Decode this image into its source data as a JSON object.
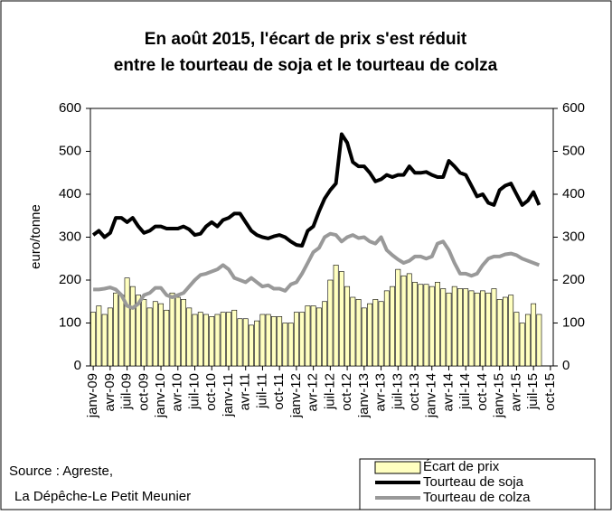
{
  "chart_data": {
    "type": "bar-line",
    "title": [
      "En août 2015, l'écart de prix s'est réduit",
      "entre le tourteau de soja et le tourteau de colza"
    ],
    "ylabel": "euro/tonne",
    "source": [
      "Source : Agreste,",
      "La Dépêche-Le Petit Meunier"
    ],
    "categories": [
      "janv-09",
      null,
      null,
      "avr-09",
      null,
      null,
      "juil-09",
      null,
      null,
      "oct-09",
      null,
      null,
      "janv-10",
      null,
      null,
      "avr-10",
      null,
      null,
      "juil-10",
      null,
      null,
      "oct-10",
      null,
      null,
      "janv-11",
      null,
      null,
      "avr-11",
      null,
      null,
      "juil-11",
      null,
      null,
      "oct-11",
      null,
      null,
      "janv-12",
      null,
      null,
      "avr-12",
      null,
      null,
      "juil-12",
      null,
      null,
      "oct-12",
      null,
      null,
      "janv-13",
      null,
      null,
      "avr-13",
      null,
      null,
      "juil-13",
      null,
      null,
      "oct-13",
      null,
      null,
      "janv-14",
      null,
      null,
      "avr-14",
      null,
      null,
      "juil-14",
      null,
      null,
      "oct-14",
      null,
      null,
      "janv-15",
      null,
      null,
      "avr-15",
      null,
      null,
      "juil-15",
      null,
      null,
      "oct-15"
    ],
    "series": [
      {
        "name": "Écart de prix",
        "kind": "bar",
        "color": "#ffffc0",
        "values": [
          125,
          140,
          120,
          135,
          170,
          165,
          205,
          185,
          165,
          155,
          135,
          150,
          145,
          130,
          170,
          160,
          155,
          135,
          120,
          125,
          120,
          115,
          120,
          125,
          125,
          130,
          110,
          110,
          95,
          105,
          120,
          120,
          115,
          115,
          100,
          100,
          125,
          125,
          140,
          140,
          135,
          150,
          200,
          235,
          220,
          185,
          160,
          155,
          135,
          145,
          155,
          150,
          175,
          185,
          225,
          210,
          215,
          195,
          190,
          190,
          185,
          195,
          180,
          170,
          185,
          180,
          180,
          175,
          170,
          175,
          170,
          180,
          155,
          160,
          165,
          125,
          100,
          120,
          145,
          120,
          null,
          null
        ]
      },
      {
        "name": "Tourteau de soja",
        "kind": "line",
        "color": "#000000",
        "values": [
          305,
          315,
          300,
          310,
          345,
          345,
          335,
          345,
          325,
          310,
          315,
          325,
          325,
          320,
          320,
          320,
          325,
          318,
          305,
          308,
          325,
          335,
          325,
          340,
          345,
          355,
          355,
          335,
          315,
          305,
          300,
          297,
          302,
          305,
          300,
          290,
          282,
          280,
          315,
          325,
          360,
          390,
          410,
          425,
          540,
          520,
          475,
          465,
          465,
          450,
          430,
          435,
          445,
          440,
          445,
          445,
          465,
          450,
          450,
          452,
          445,
          440,
          440,
          478,
          465,
          450,
          445,
          420,
          395,
          400,
          380,
          375,
          410,
          420,
          425,
          400,
          375,
          385,
          405,
          375,
          null,
          null
        ]
      },
      {
        "name": "Tourteau de colza",
        "kind": "line",
        "color": "#999999",
        "values": [
          178,
          178,
          180,
          183,
          178,
          165,
          140,
          135,
          145,
          165,
          170,
          182,
          182,
          165,
          160,
          165,
          170,
          185,
          200,
          212,
          215,
          220,
          225,
          235,
          225,
          205,
          200,
          195,
          205,
          195,
          185,
          188,
          180,
          180,
          175,
          190,
          195,
          215,
          240,
          265,
          275,
          300,
          308,
          305,
          290,
          300,
          305,
          298,
          300,
          290,
          285,
          300,
          270,
          258,
          248,
          240,
          245,
          255,
          255,
          250,
          255,
          285,
          290,
          270,
          240,
          215,
          215,
          210,
          215,
          235,
          250,
          255,
          255,
          260,
          262,
          258,
          250,
          245,
          240,
          235,
          null,
          null
        ]
      }
    ],
    "ylim": [
      0,
      600
    ],
    "yticks": [
      0,
      100,
      200,
      300,
      400,
      500,
      600
    ],
    "y2lim": [
      0,
      600
    ],
    "y2ticks": [
      0,
      100,
      200,
      300,
      400,
      500,
      600
    ]
  }
}
